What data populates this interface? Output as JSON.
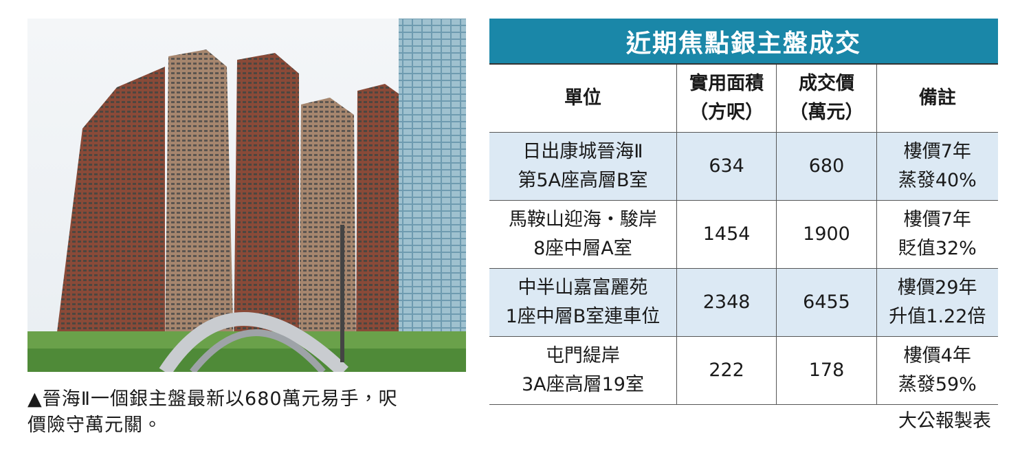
{
  "photo_caption": [
    "▲晉海Ⅱ一個銀主盤最新以680萬元易手，呎",
    "價險守萬元關。"
  ],
  "table": {
    "title": "近期焦點銀主盤成交",
    "columns": [
      [
        "單位"
      ],
      [
        "實用面積",
        "（方呎）"
      ],
      [
        "成交價",
        "（萬元）"
      ],
      [
        "備註"
      ]
    ],
    "rows": [
      [
        [
          "日出康城晉海Ⅱ",
          "第5A座高層B室"
        ],
        634,
        680,
        [
          "樓價7年",
          "蒸發40%"
        ]
      ],
      [
        [
          "馬鞍山迎海・駿岸",
          "8座中層A室"
        ],
        1454,
        1900,
        [
          "樓價7年",
          "貶值32%"
        ]
      ],
      [
        [
          "中半山嘉富麗苑",
          "1座中層B室連車位"
        ],
        2348,
        6455,
        [
          "樓價29年",
          "升值1.22倍"
        ]
      ],
      [
        [
          "屯門緹岸",
          "3A座高層19室"
        ],
        222,
        178,
        [
          "樓價4年",
          "蒸發59%"
        ]
      ]
    ]
  },
  "source": "大公報製表"
}
